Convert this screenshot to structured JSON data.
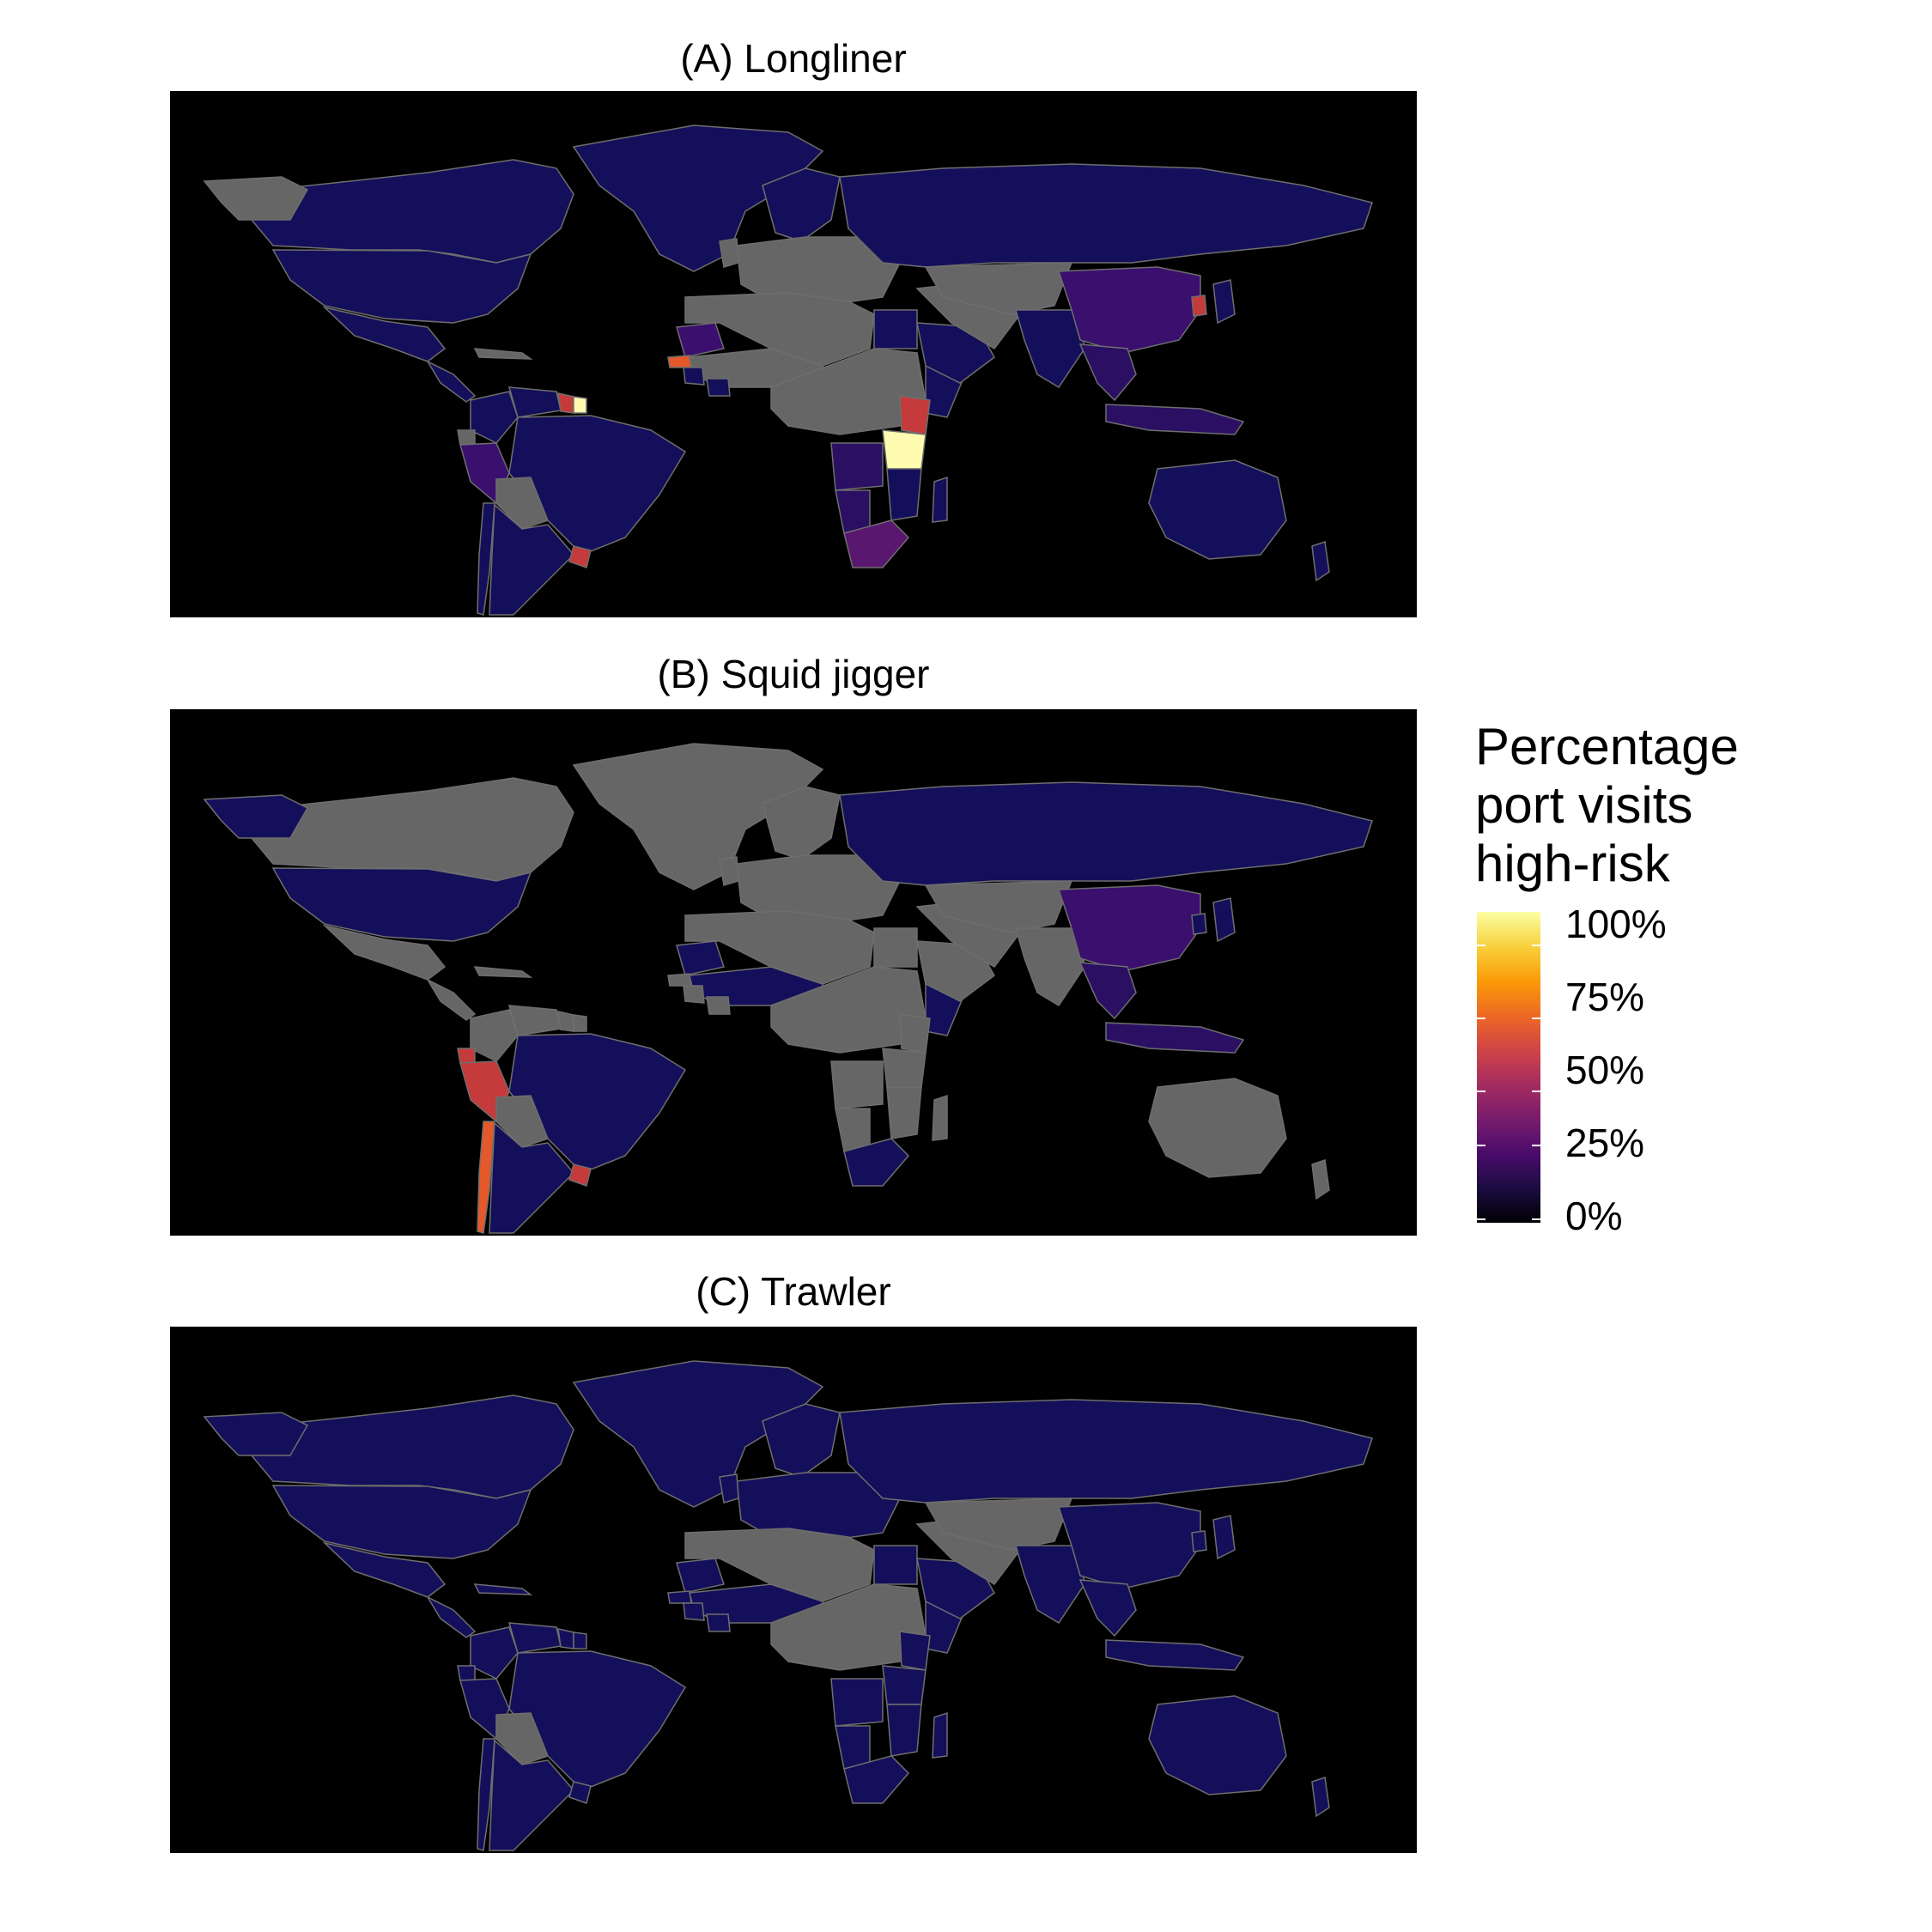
{
  "panels": [
    {
      "title": "(A) Longliner",
      "countries": {
        "canada": "#140f5a",
        "usa": "#140f5a",
        "mexico": "#140f5a",
        "central_america": "#140f5a",
        "greenland": "#140f5a",
        "russia": "#140f5a",
        "scandinavia": "#140f5a",
        "china": "#3b0f6e",
        "japan": "#140f5a",
        "korea": "#c53a3a",
        "india": "#140f5a",
        "southeast_asia": "#2a0f63",
        "indonesia": "#2a0f63",
        "australia": "#140f5a",
        "new_zealand": "#140f5a",
        "brazil": "#140f5a",
        "venezuela": "#140f5a",
        "colombia": "#140f5a",
        "peru": "#3b0f6e",
        "argentina": "#140f5a",
        "chile": "#140f5a",
        "uruguay": "#c53a3a",
        "guyana": "#c53a3a",
        "suriname": "#fffbb0",
        "senegal": "#e5582a",
        "guinea": "#140f5a",
        "ivory_coast": "#140f5a",
        "mauritania": "#3b0f6e",
        "kenya": "#c53a3a",
        "tanzania": "#fffbb0",
        "mozambique": "#140f5a",
        "madagascar": "#140f5a",
        "namibia": "#2a0f63",
        "south_africa": "#5a1770",
        "angola": "#2a0f63",
        "egypt": "#140f5a",
        "arabia": "#140f5a",
        "somalia": "#140f5a"
      }
    },
    {
      "title": "(B) Squid jigger",
      "countries": {
        "usa": "#140f5a",
        "alaska": "#140f5a",
        "russia": "#140f5a",
        "china": "#3b0f6e",
        "japan": "#140f5a",
        "korea": "#140f5a",
        "southeast_asia": "#2a0f63",
        "indonesia": "#2a0f63",
        "peru": "#c53a3a",
        "chile": "#e5582a",
        "argentina": "#140f5a",
        "brazil": "#140f5a",
        "ecuador": "#c53a3a",
        "uruguay": "#c53a3a",
        "mauritania": "#140f5a",
        "south_africa": "#140f5a",
        "somalia": "#140f5a",
        "west_africa": "#140f5a"
      }
    },
    {
      "title": "(C) Trawler",
      "countries": {
        "most_countries": "#140f5a"
      }
    }
  ],
  "legend": {
    "title_lines": [
      "Percentage",
      "port visits",
      "high-risk"
    ],
    "ticks": [
      "100%",
      "75%",
      "50%",
      "25%",
      "0%"
    ],
    "colors": [
      "#000004",
      "#1b0c41",
      "#4a0c6b",
      "#781c6d",
      "#a52c60",
      "#cf4446",
      "#ed6925",
      "#fb9b06",
      "#f7d13d",
      "#fcffa4"
    ]
  },
  "map_colors": {
    "ocean": "#000000",
    "no_data": "#666666",
    "border": "#6e6e6e"
  }
}
